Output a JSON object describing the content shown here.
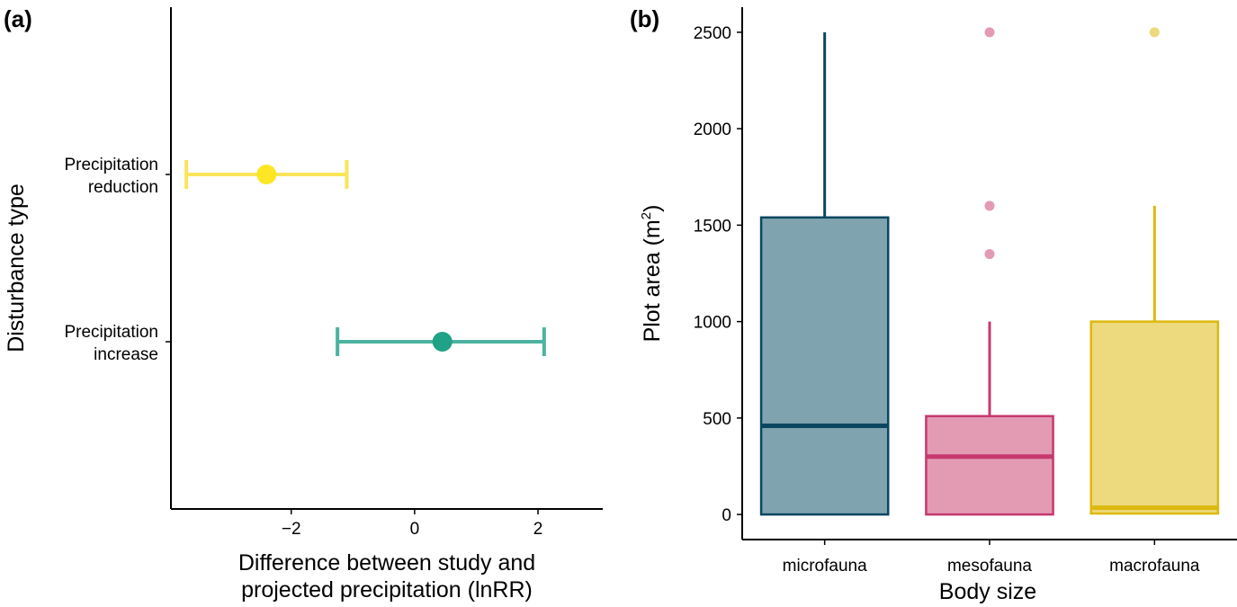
{
  "chart_data": [
    {
      "panel_label": "(a)",
      "type": "scatter",
      "subtype": "point-with-error-bars",
      "title": "",
      "xlabel_lines": [
        "Difference between study and",
        "projected precipitation (lnRR)"
      ],
      "ylabel": "Disturbance type",
      "xlim": [
        -3.95,
        3.05
      ],
      "xticks": [
        -2,
        0,
        2
      ],
      "xtick_labels": [
        "−2",
        "0",
        "2"
      ],
      "categories": [
        {
          "label_lines": [
            "Precipitation",
            "reduction"
          ],
          "estimate": -2.4,
          "lower": -3.7,
          "upper": -1.1,
          "point_color": "#FDE725",
          "bar_color": "#F9E55B"
        },
        {
          "label_lines": [
            "Precipitation",
            "increase"
          ],
          "estimate": 0.45,
          "lower": -1.25,
          "upper": 2.1,
          "point_color": "#21A185",
          "bar_color": "#4DB3A0"
        }
      ],
      "grid": false
    },
    {
      "panel_label": "(b)",
      "type": "box",
      "title": "",
      "xlabel": "Body size",
      "ylabel": "Plot area (m",
      "ylabel_superscript": "2",
      "ylabel_suffix": ")",
      "ylim": [
        -130,
        2630
      ],
      "yticks": [
        0,
        500,
        1000,
        1500,
        2000,
        2500
      ],
      "ytick_labels": [
        "0",
        "500",
        "1000",
        "1500",
        "2000",
        "2500"
      ],
      "groups": [
        {
          "name": "microfauna",
          "q1": 0,
          "median": 460,
          "q3": 1540,
          "whisker_low": 0,
          "whisker_high": 2500,
          "outliers": [],
          "line_color": "#0B4660",
          "fill_color": "#7FA3AF"
        },
        {
          "name": "mesofauna",
          "q1": 0,
          "median": 300,
          "q3": 510,
          "whisker_low": 0,
          "whisker_high": 1000,
          "outliers": [
            1350,
            1600,
            2500
          ],
          "line_color": "#C7386E",
          "fill_color": "#E39BB3"
        },
        {
          "name": "macrofauna",
          "q1": 5,
          "median": 35,
          "q3": 1000,
          "whisker_low": 0,
          "whisker_high": 1600,
          "outliers": [
            2500
          ],
          "line_color": "#DDB80E",
          "fill_color": "#EDD97E"
        }
      ],
      "grid": false
    }
  ]
}
